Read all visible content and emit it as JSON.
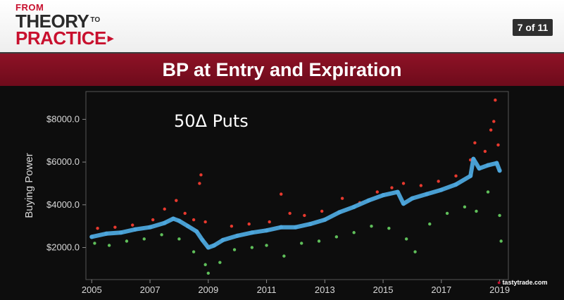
{
  "header": {
    "logo_from": "FROM",
    "logo_theory": "THEORY",
    "logo_to": "TO",
    "logo_practice": "PRACTICE",
    "page_indicator": "7 of 11"
  },
  "slide": {
    "title": "BP at Entry and Expiration"
  },
  "watermark": "tastytrade.com",
  "colors": {
    "entry_series": "#4da6dc",
    "expiration_high": "#e8392e",
    "expiration_low": "#5fbf5a",
    "title_bar": "#8e1226",
    "brand_red": "#c8102e"
  },
  "chart_data": {
    "type": "scatter",
    "annotation": "50Δ Puts",
    "title": "",
    "xlabel": "",
    "ylabel": "Buying Power",
    "xlim": [
      2004.8,
      2019.3
    ],
    "ylim": [
      500,
      9300
    ],
    "x_ticks": [
      {
        "value": 2005,
        "label": "2005"
      },
      {
        "value": 2007,
        "label": "2007"
      },
      {
        "value": 2009,
        "label": "2009"
      },
      {
        "value": 2011,
        "label": "2011"
      },
      {
        "value": 2013,
        "label": "2013"
      },
      {
        "value": 2015,
        "label": "2015"
      },
      {
        "value": 2017,
        "label": "2017"
      },
      {
        "value": 2019,
        "label": "2019"
      }
    ],
    "y_ticks": [
      {
        "value": 2000,
        "label": "$2000.0"
      },
      {
        "value": 4000,
        "label": "$4000.0"
      },
      {
        "value": 6000,
        "label": "$6000.0"
      },
      {
        "value": 8000,
        "label": "$8000.0"
      }
    ],
    "grid": false,
    "series": [
      {
        "values": [
          [
            2005.0,
            2500
          ],
          [
            2005.5,
            2650
          ],
          [
            2006.0,
            2700
          ],
          [
            2006.5,
            2850
          ],
          [
            2007.0,
            2950
          ],
          [
            2007.5,
            3150
          ],
          [
            2007.8,
            3350
          ],
          [
            2008.0,
            3250
          ],
          [
            2008.3,
            3000
          ],
          [
            2008.6,
            2750
          ],
          [
            2008.8,
            2350
          ],
          [
            2009.0,
            2000
          ],
          [
            2009.2,
            2100
          ],
          [
            2009.5,
            2350
          ],
          [
            2010.0,
            2550
          ],
          [
            2010.5,
            2700
          ],
          [
            2011.0,
            2800
          ],
          [
            2011.5,
            2950
          ],
          [
            2012.0,
            2950
          ],
          [
            2012.5,
            3100
          ],
          [
            2013.0,
            3300
          ],
          [
            2013.5,
            3650
          ],
          [
            2014.0,
            3900
          ],
          [
            2014.5,
            4200
          ],
          [
            2015.0,
            4450
          ],
          [
            2015.5,
            4600
          ],
          [
            2015.7,
            4050
          ],
          [
            2016.0,
            4300
          ],
          [
            2016.5,
            4500
          ],
          [
            2017.0,
            4700
          ],
          [
            2017.5,
            4950
          ],
          [
            2018.0,
            5350
          ],
          [
            2018.1,
            6150
          ],
          [
            2018.3,
            5700
          ],
          [
            2018.6,
            5850
          ],
          [
            2018.9,
            5950
          ],
          [
            2019.0,
            5600
          ]
        ]
      },
      {
        "values": [
          [
            2005.2,
            2900
          ],
          [
            2005.8,
            2950
          ],
          [
            2006.4,
            3050
          ],
          [
            2007.1,
            3300
          ],
          [
            2007.5,
            3800
          ],
          [
            2007.9,
            4200
          ],
          [
            2008.2,
            3600
          ],
          [
            2008.5,
            3300
          ],
          [
            2008.7,
            5000
          ],
          [
            2008.75,
            5400
          ],
          [
            2008.9,
            3200
          ],
          [
            2009.8,
            3000
          ],
          [
            2010.4,
            3100
          ],
          [
            2011.1,
            3200
          ],
          [
            2011.5,
            4500
          ],
          [
            2011.8,
            3600
          ],
          [
            2012.3,
            3500
          ],
          [
            2012.9,
            3700
          ],
          [
            2013.6,
            4300
          ],
          [
            2014.2,
            4100
          ],
          [
            2014.8,
            4600
          ],
          [
            2015.3,
            4800
          ],
          [
            2015.7,
            5000
          ],
          [
            2016.3,
            4900
          ],
          [
            2016.9,
            5100
          ],
          [
            2017.5,
            5350
          ],
          [
            2018.0,
            6100
          ],
          [
            2018.15,
            6900
          ],
          [
            2018.5,
            6500
          ],
          [
            2018.7,
            7500
          ],
          [
            2018.8,
            7900
          ],
          [
            2018.85,
            8900
          ],
          [
            2018.95,
            6800
          ]
        ]
      },
      {
        "values": [
          [
            2005.1,
            2200
          ],
          [
            2005.6,
            2100
          ],
          [
            2006.2,
            2300
          ],
          [
            2006.8,
            2400
          ],
          [
            2007.4,
            2600
          ],
          [
            2008.0,
            2400
          ],
          [
            2008.5,
            1800
          ],
          [
            2008.9,
            1200
          ],
          [
            2009.0,
            800
          ],
          [
            2009.4,
            1300
          ],
          [
            2009.9,
            1900
          ],
          [
            2010.5,
            2000
          ],
          [
            2011.0,
            2100
          ],
          [
            2011.6,
            1600
          ],
          [
            2012.2,
            2200
          ],
          [
            2012.8,
            2300
          ],
          [
            2013.4,
            2500
          ],
          [
            2014.0,
            2700
          ],
          [
            2014.6,
            3000
          ],
          [
            2015.2,
            2900
          ],
          [
            2015.8,
            2400
          ],
          [
            2016.1,
            1800
          ],
          [
            2016.6,
            3100
          ],
          [
            2017.2,
            3600
          ],
          [
            2017.8,
            3900
          ],
          [
            2018.2,
            3700
          ],
          [
            2018.6,
            4600
          ],
          [
            2019.0,
            3500
          ],
          [
            2019.05,
            2300
          ]
        ]
      }
    ]
  }
}
